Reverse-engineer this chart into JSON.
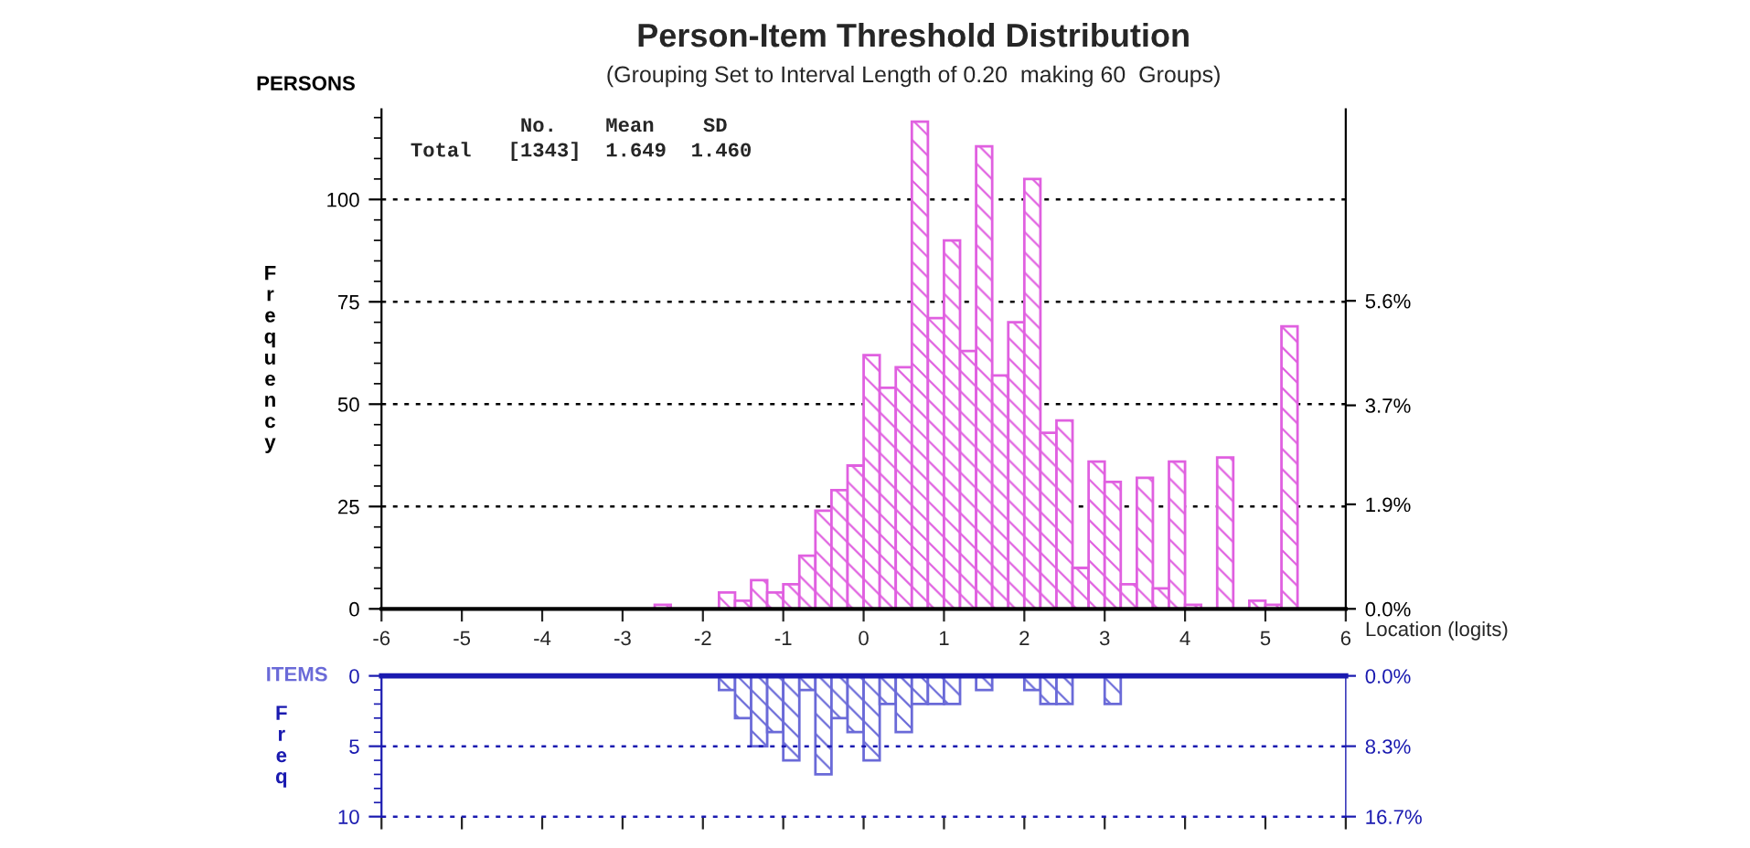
{
  "chart_data": [
    {
      "type": "histogram",
      "title": "Person-Item Threshold Distribution",
      "subtitle": "(Grouping Set to Interval Length of 0.20  making 60  Groups)",
      "xlabel": "Location (logits)",
      "ylabel": "Frequency",
      "annotations": [
        "         No.    Mean    SD",
        "Total   [1343]  1.649  1.460"
      ],
      "bins": [
        -6.0,
        -5.8,
        -5.6,
        -5.4,
        -5.2,
        -5.0,
        -4.8,
        -4.6,
        -4.4,
        -4.2,
        -4.0,
        -3.8,
        -3.6,
        -3.4,
        -3.2,
        -3.0,
        -2.8,
        -2.6,
        -2.4,
        -2.2,
        -2.0,
        -1.8,
        -1.6,
        -1.4,
        -1.2,
        -1.0,
        -0.8,
        -0.6,
        -0.4,
        -0.2,
        0.0,
        0.2,
        0.4,
        0.6,
        0.8,
        1.0,
        1.2,
        1.4,
        1.6,
        1.8,
        2.0,
        2.2,
        2.4,
        2.6,
        2.8,
        3.0,
        3.2,
        3.4,
        3.6,
        3.8,
        4.0,
        4.2,
        4.4,
        4.6,
        4.8,
        5.0,
        5.2,
        5.4,
        5.6,
        5.8,
        6.0
      ],
      "series": [
        {
          "name": "PERSONS",
          "color": "#e060e0",
          "values": [
            0,
            0,
            0,
            0,
            0,
            0,
            0,
            0,
            0,
            0,
            0,
            0,
            0,
            0,
            0,
            0,
            0,
            1,
            0,
            0,
            0,
            4,
            2,
            7,
            4,
            6,
            13,
            24,
            29,
            35,
            62,
            54,
            59,
            119,
            71,
            90,
            63,
            113,
            57,
            70,
            105,
            43,
            46,
            10,
            36,
            31,
            6,
            32,
            5,
            36,
            1,
            0,
            37,
            0,
            2,
            1,
            69,
            0,
            0,
            0
          ]
        }
      ],
      "xlim": [
        -6,
        6
      ],
      "xticks": [
        -6,
        -5,
        -4,
        -3,
        -2,
        -1,
        0,
        1,
        2,
        3,
        4,
        5,
        6
      ],
      "ylim": [
        0,
        122
      ],
      "yticks": [
        0,
        25,
        50,
        75,
        100
      ],
      "y2lim": [
        0,
        9.08
      ],
      "y2ticks": [
        {
          "value": 0,
          "label": "0.0%"
        },
        {
          "value": 1.9,
          "label": "1.9%"
        },
        {
          "value": 3.7,
          "label": "3.7%"
        },
        {
          "value": 5.6,
          "label": "5.6%"
        }
      ],
      "grid": "y"
    },
    {
      "type": "histogram",
      "ylabel": "Freq",
      "bins": [
        -6.0,
        -5.8,
        -5.6,
        -5.4,
        -5.2,
        -5.0,
        -4.8,
        -4.6,
        -4.4,
        -4.2,
        -4.0,
        -3.8,
        -3.6,
        -3.4,
        -3.2,
        -3.0,
        -2.8,
        -2.6,
        -2.4,
        -2.2,
        -2.0,
        -1.8,
        -1.6,
        -1.4,
        -1.2,
        -1.0,
        -0.8,
        -0.6,
        -0.4,
        -0.2,
        0.0,
        0.2,
        0.4,
        0.6,
        0.8,
        1.0,
        1.2,
        1.4,
        1.6,
        1.8,
        2.0,
        2.2,
        2.4,
        2.6,
        2.8,
        3.0,
        3.2,
        3.4,
        3.6,
        3.8,
        4.0,
        4.2,
        4.4,
        4.6,
        4.8,
        5.0,
        5.2,
        5.4,
        5.6,
        5.8,
        6.0
      ],
      "series": [
        {
          "name": "ITEMS",
          "color": "#6a6ad8",
          "values": [
            0,
            0,
            0,
            0,
            0,
            0,
            0,
            0,
            0,
            0,
            0,
            0,
            0,
            0,
            0,
            0,
            0,
            0,
            0,
            0,
            0,
            1,
            3,
            5,
            4,
            6,
            1,
            7,
            3,
            4,
            6,
            2,
            4,
            2,
            2,
            2,
            0,
            1,
            0,
            0,
            1,
            2,
            2,
            0,
            0,
            2,
            0,
            0,
            0,
            0,
            0,
            0,
            0,
            0,
            0,
            0,
            0,
            0,
            0,
            0
          ]
        }
      ],
      "xlim": [
        -6,
        6
      ],
      "xticks": [
        -6,
        -5,
        -4,
        -3,
        -2,
        -1,
        0,
        1,
        2,
        3,
        4,
        5,
        6
      ],
      "ylim": [
        10,
        0
      ],
      "yticks": [
        0,
        5,
        10
      ],
      "y2lim": [
        16.67,
        0
      ],
      "y2ticks": [
        {
          "value": 0,
          "label": "0.0%"
        },
        {
          "value": 8.33,
          "label": "8.3%"
        },
        {
          "value": 16.67,
          "label": "16.7%"
        }
      ],
      "ref_lines": [
        {
          "axis": "y",
          "value": 5,
          "line_style": "dotted"
        },
        {
          "axis": "y",
          "value": 10,
          "line_style": "dotted"
        }
      ],
      "tick_labels": "y"
    }
  ]
}
